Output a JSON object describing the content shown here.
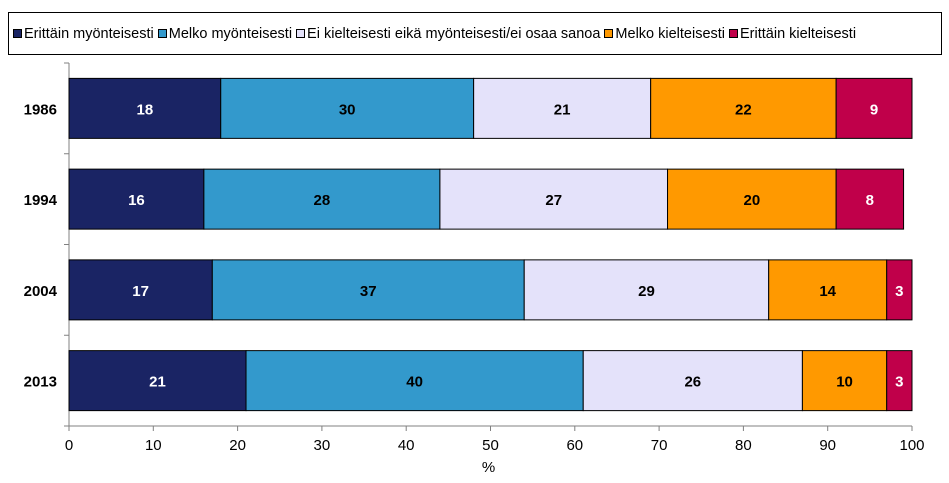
{
  "chart_data": {
    "type": "bar",
    "orientation": "horizontal",
    "stacked": true,
    "categories": [
      "1986",
      "1994",
      "2004",
      "2013"
    ],
    "series": [
      {
        "name": "Erittäin myönteisesti",
        "color": "#1a2464",
        "label_color": "#ffffff",
        "values": [
          18,
          16,
          17,
          21
        ]
      },
      {
        "name": "Melko myönteisesti",
        "color": "#3399cc",
        "label_color": "#000000",
        "values": [
          30,
          28,
          37,
          40
        ]
      },
      {
        "name": "Ei kielteisesti eikä myönteisesti/ei osaa sanoa",
        "color": "#e4e2fa",
        "label_color": "#000000",
        "values": [
          21,
          27,
          29,
          26
        ]
      },
      {
        "name": "Melko kielteisesti",
        "color": "#ff9900",
        "label_color": "#000000",
        "values": [
          22,
          20,
          14,
          10
        ]
      },
      {
        "name": "Erittäin kielteisesti",
        "color": "#c0004a",
        "label_color": "#ffffff",
        "values": [
          9,
          8,
          3,
          3
        ]
      }
    ],
    "xlabel": "%",
    "xlim": [
      0,
      100
    ],
    "xticks": [
      "0",
      "10",
      "20",
      "30",
      "40",
      "50",
      "60",
      "70",
      "80",
      "90",
      "100"
    ],
    "grid": false,
    "legend_position": "top"
  }
}
